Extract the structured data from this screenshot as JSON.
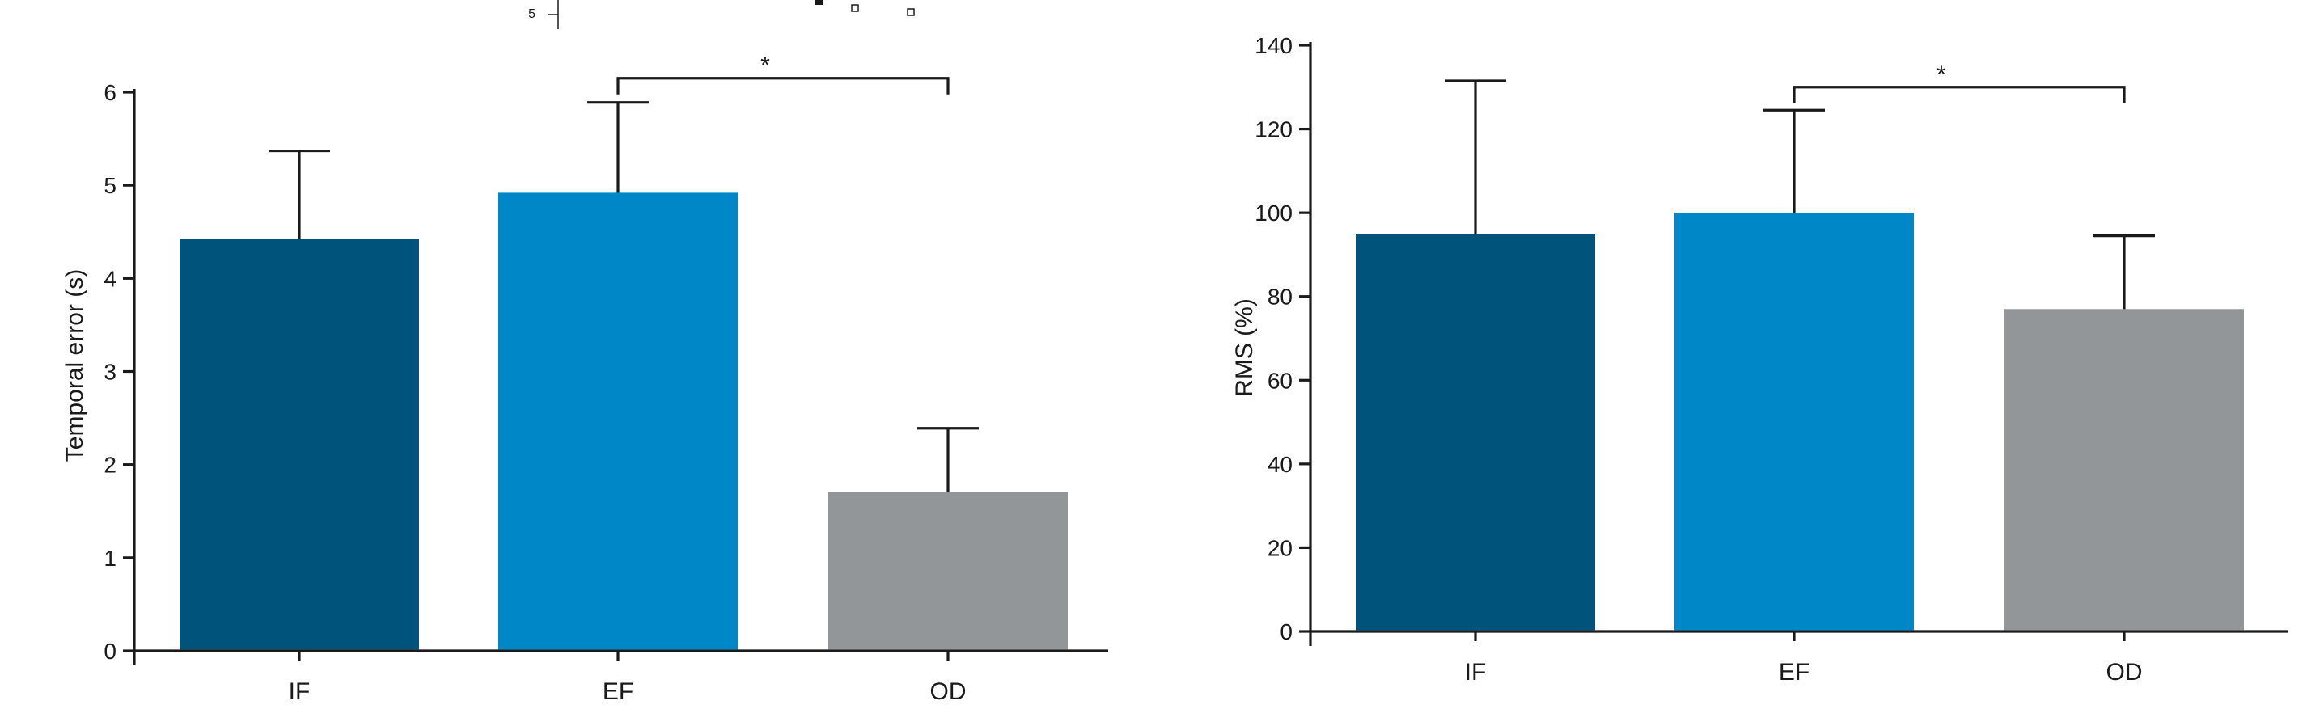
{
  "colors": {
    "if": "#00537a",
    "ef": "#0087c8",
    "od": "#929699",
    "axis": "#1a1a1a"
  },
  "corner_label": "5",
  "chart_data": [
    {
      "type": "bar",
      "title": "",
      "xlabel": "",
      "ylabel": "Temporal error (s)",
      "categories": [
        "IF",
        "EF",
        "OD"
      ],
      "values": [
        4.42,
        4.92,
        1.71
      ],
      "errors": [
        0.95,
        0.97,
        0.68
      ],
      "ylim": [
        0,
        6
      ],
      "yticks": [
        "0",
        "1",
        "2",
        "3",
        "4",
        "5",
        "6"
      ],
      "significance": {
        "from": 1,
        "to": 2,
        "label": "*",
        "y": 6.15
      },
      "grid": false
    },
    {
      "type": "bar",
      "title": "",
      "xlabel": "",
      "ylabel": "RMS (%)",
      "categories": [
        "IF",
        "EF",
        "OD"
      ],
      "values": [
        95,
        100,
        77
      ],
      "errors": [
        36.5,
        24.5,
        17.5
      ],
      "ylim": [
        0,
        140
      ],
      "yticks": [
        "0",
        "20",
        "40",
        "60",
        "80",
        "100",
        "120",
        "140"
      ],
      "significance": {
        "from": 1,
        "to": 2,
        "label": "*",
        "y": 130
      },
      "grid": false
    }
  ]
}
